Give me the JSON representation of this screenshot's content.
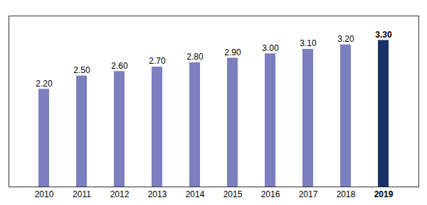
{
  "chart_data": {
    "type": "bar",
    "categories": [
      "2010",
      "2011",
      "2012",
      "2013",
      "2014",
      "2015",
      "2016",
      "2017",
      "2018",
      "2019"
    ],
    "values": [
      2.2,
      2.5,
      2.6,
      2.7,
      2.8,
      2.9,
      3.0,
      3.1,
      3.2,
      3.3
    ],
    "value_labels": [
      "2.20",
      "2.50",
      "2.60",
      "2.70",
      "2.80",
      "2.90",
      "3.00",
      "3.10",
      "3.20",
      "3.30"
    ],
    "colors": [
      "#7b7fbe",
      "#7b7fbe",
      "#7b7fbe",
      "#7b7fbe",
      "#7b7fbe",
      "#7b7fbe",
      "#7b7fbe",
      "#7b7fbe",
      "#7b7fbe",
      "#1a3068"
    ],
    "ylim": [
      0,
      3.85
    ],
    "data_labels": true,
    "tick_labels": "x",
    "grid": false
  }
}
